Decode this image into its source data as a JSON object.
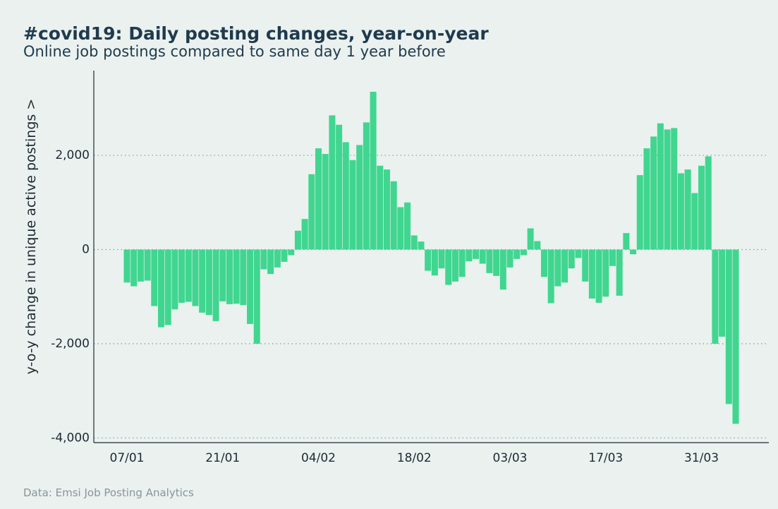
{
  "chart_data": {
    "type": "bar",
    "title": "#covid19: Daily posting changes, year-on-year",
    "subtitle": "Online job postings compared to same day 1 year before",
    "y_label": "y-o-y change in unique active postings >",
    "source": "Data: Emsi Job Posting Analytics",
    "color": "#40d690",
    "grid": true,
    "ylim": [
      -4100,
      3800
    ],
    "yticks": [
      {
        "value": -4000,
        "label": "-4,000"
      },
      {
        "value": -2000,
        "label": "-2,000"
      },
      0,
      {
        "value": 2000,
        "label": "2,000"
      }
    ],
    "categories": [
      "07/01",
      null,
      null,
      null,
      null,
      null,
      null,
      null,
      null,
      null,
      null,
      null,
      null,
      null,
      "21/01",
      null,
      null,
      null,
      null,
      null,
      null,
      null,
      null,
      null,
      null,
      null,
      null,
      null,
      "04/02",
      null,
      null,
      null,
      null,
      null,
      null,
      null,
      null,
      null,
      null,
      null,
      null,
      null,
      "18/02",
      null,
      null,
      null,
      null,
      null,
      null,
      null,
      null,
      null,
      null,
      null,
      null,
      null,
      "03/03",
      null,
      null,
      null,
      null,
      null,
      null,
      null,
      null,
      null,
      null,
      null,
      null,
      null,
      "17/03",
      null,
      null,
      null,
      null,
      null,
      null,
      null,
      null,
      null,
      null,
      null,
      null,
      null,
      "31/03",
      null,
      null,
      null,
      null,
      null
    ],
    "values": [
      -700,
      -780,
      -680,
      -660,
      -1200,
      -1650,
      -1600,
      -1270,
      -1130,
      -1110,
      -1200,
      -1340,
      -1390,
      -1520,
      -1100,
      -1160,
      -1150,
      -1180,
      -1580,
      -2000,
      -420,
      -520,
      -380,
      -260,
      -120,
      400,
      650,
      1600,
      2150,
      2030,
      2850,
      2650,
      2280,
      1900,
      2220,
      2700,
      3350,
      1780,
      1700,
      1450,
      900,
      1000,
      300,
      170,
      -450,
      -550,
      -400,
      -750,
      -680,
      -580,
      -250,
      -200,
      -300,
      -500,
      -560,
      -850,
      -380,
      -200,
      -120,
      450,
      180,
      -580,
      -1140,
      -780,
      -700,
      -400,
      -180,
      -680,
      -1040,
      -1130,
      -1000,
      -350,
      -980,
      350,
      -100,
      1580,
      2150,
      2400,
      2680,
      2550,
      2580,
      1620,
      1700,
      1200,
      1780,
      1980,
      -2000,
      -1850,
      -3280,
      -3700
    ]
  }
}
